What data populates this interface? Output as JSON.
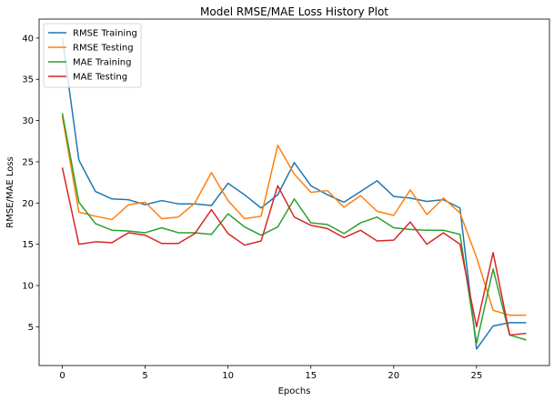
{
  "chart_data": {
    "type": "line",
    "title": "Model RMSE/MAE Loss History Plot",
    "xlabel": "Epochs",
    "ylabel": "RMSE/MAE Loss",
    "xlim": [
      -1.4,
      29.4
    ],
    "ylim": [
      0.3,
      42.3
    ],
    "xticks": [
      0,
      5,
      10,
      15,
      20,
      25
    ],
    "yticks": [
      5,
      10,
      15,
      20,
      25,
      30,
      35,
      40
    ],
    "grid": false,
    "legend_position": "top-left",
    "x": [
      0,
      1,
      2,
      3,
      4,
      5,
      6,
      7,
      8,
      9,
      10,
      11,
      12,
      13,
      14,
      15,
      16,
      17,
      18,
      19,
      20,
      21,
      22,
      23,
      24,
      25,
      26,
      27,
      28
    ],
    "series": [
      {
        "name": "RMSE Training",
        "color": "#1f77b4",
        "values": [
          40.0,
          25.2,
          21.4,
          20.5,
          20.4,
          19.8,
          20.3,
          19.9,
          19.9,
          19.7,
          22.4,
          21.0,
          19.4,
          21.0,
          24.9,
          22.1,
          21.0,
          20.1,
          21.4,
          22.7,
          20.8,
          20.6,
          20.2,
          20.4,
          19.4,
          2.3,
          5.1,
          5.5,
          5.5
        ]
      },
      {
        "name": "RMSE Testing",
        "color": "#ff7f0e",
        "values": [
          30.5,
          18.9,
          18.4,
          18.0,
          19.8,
          20.1,
          18.1,
          18.3,
          20.0,
          23.7,
          20.3,
          18.1,
          18.4,
          27.0,
          23.5,
          21.3,
          21.5,
          19.5,
          20.9,
          19.0,
          18.5,
          21.6,
          18.6,
          20.6,
          18.8,
          13.4,
          7.0,
          6.4,
          6.4
        ]
      },
      {
        "name": "MAE Training",
        "color": "#2ca02c",
        "values": [
          30.9,
          20.1,
          17.5,
          16.7,
          16.6,
          16.4,
          17.0,
          16.4,
          16.4,
          16.2,
          18.7,
          17.1,
          16.1,
          17.1,
          20.5,
          17.6,
          17.4,
          16.3,
          17.6,
          18.3,
          17.0,
          16.8,
          16.7,
          16.7,
          16.2,
          3.0,
          12.0,
          4.0,
          3.4
        ]
      },
      {
        "name": "MAE Testing",
        "color": "#d62728",
        "values": [
          24.3,
          15.0,
          15.3,
          15.2,
          16.4,
          16.1,
          15.1,
          15.1,
          16.3,
          19.2,
          16.3,
          14.9,
          15.4,
          22.1,
          18.3,
          17.3,
          16.9,
          15.8,
          16.7,
          15.4,
          15.5,
          17.7,
          15.0,
          16.4,
          15.0,
          5.0,
          14.0,
          4.0,
          4.2
        ]
      }
    ]
  }
}
